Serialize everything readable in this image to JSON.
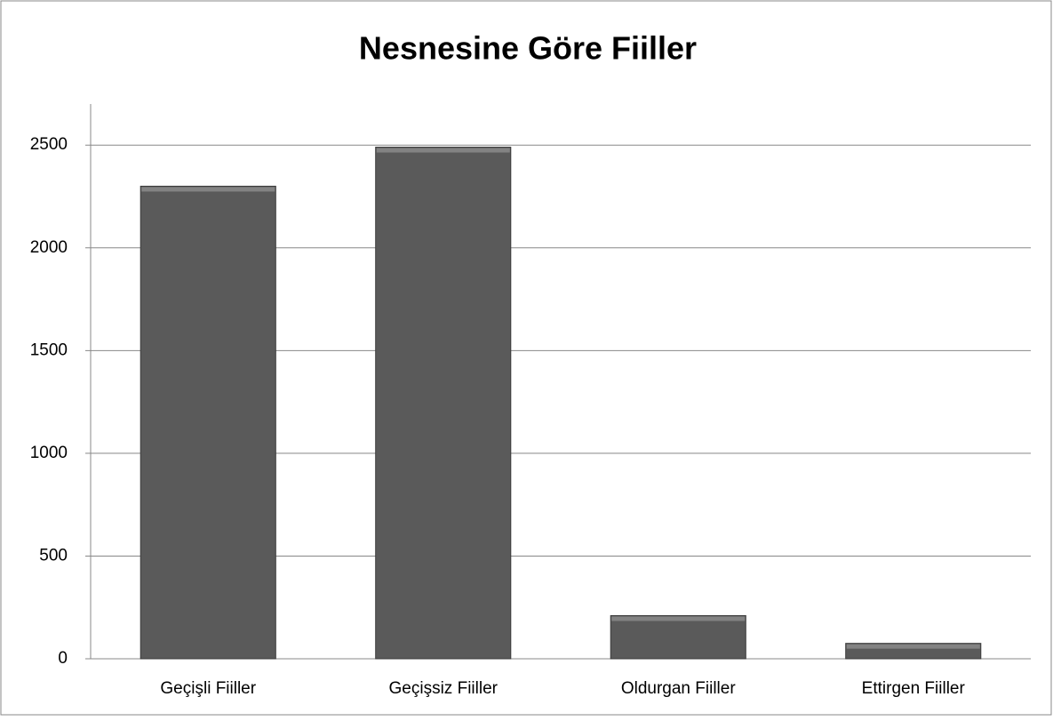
{
  "chart_data": {
    "type": "bar",
    "title": "Nesnesine Göre Fiiller",
    "categories": [
      "Geçişli Fiiller",
      "Geçişsiz Fiiller",
      "Oldurgan Fiiller",
      "Ettirgen Fiiller"
    ],
    "values": [
      2300,
      2490,
      210,
      75
    ],
    "color": "#5a5a5a",
    "ylim": [
      0,
      2700
    ],
    "yticks": [
      0,
      500,
      1000,
      1500,
      2000,
      2500
    ],
    "grid": true
  }
}
